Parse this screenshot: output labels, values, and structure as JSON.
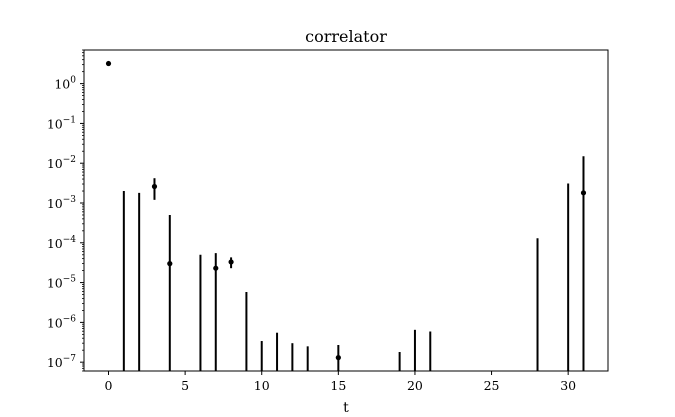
{
  "chart_data": {
    "type": "scatter",
    "title": "correlator",
    "xlabel": "t",
    "ylabel": "",
    "yscale": "log",
    "xlim": [
      -1.6,
      32.6
    ],
    "ylim": [
      6e-08,
      7
    ],
    "xticks": [
      0,
      5,
      10,
      15,
      20,
      25,
      30
    ],
    "xtick_labels": [
      "0",
      "5",
      "10",
      "15",
      "20",
      "25",
      "30"
    ],
    "yticks": [
      1e-07,
      1e-06,
      1e-05,
      0.0001,
      0.001,
      0.01,
      0.1,
      1
    ],
    "ytick_labels": [
      {
        "base": "10",
        "exp": "−7"
      },
      {
        "base": "10",
        "exp": "−6"
      },
      {
        "base": "10",
        "exp": "−5"
      },
      {
        "base": "10",
        "exp": "−4"
      },
      {
        "base": "10",
        "exp": "−3"
      },
      {
        "base": "10",
        "exp": "−2"
      },
      {
        "base": "10",
        "exp": "−1"
      },
      {
        "base": "10",
        "exp": "0"
      }
    ],
    "grid": false,
    "color": "#000000",
    "points": [
      {
        "x": 0,
        "y": 3.2
      },
      {
        "x": 3,
        "y": 0.0026,
        "low": 0.0012,
        "high": 0.0042
      },
      {
        "x": 4,
        "y": 3e-05
      },
      {
        "x": 7,
        "y": 2.3e-05
      },
      {
        "x": 8,
        "y": 3.3e-05,
        "low": 2.3e-05,
        "high": 4.3e-05
      },
      {
        "x": 15,
        "y": 1.3e-07
      },
      {
        "x": 31,
        "y": 0.0018
      }
    ],
    "errorbars": [
      {
        "x": 1,
        "low": 6e-08,
        "high": 0.002
      },
      {
        "x": 2,
        "low": 6e-08,
        "high": 0.0018
      },
      {
        "x": 3,
        "low": 0.0012,
        "high": 0.0042
      },
      {
        "x": 4,
        "low": 6e-08,
        "high": 0.0005
      },
      {
        "x": 6,
        "low": 6e-08,
        "high": 5e-05
      },
      {
        "x": 7,
        "low": 6e-08,
        "high": 5.5e-05
      },
      {
        "x": 8,
        "low": 2.3e-05,
        "high": 4.3e-05
      },
      {
        "x": 9,
        "low": 6e-08,
        "high": 5.8e-06
      },
      {
        "x": 10,
        "low": 6e-08,
        "high": 3.4e-07
      },
      {
        "x": 11,
        "low": 6e-08,
        "high": 5.5e-07
      },
      {
        "x": 12,
        "low": 6e-08,
        "high": 3e-07
      },
      {
        "x": 13,
        "low": 6e-08,
        "high": 2.5e-07
      },
      {
        "x": 15,
        "low": 6e-08,
        "high": 2.7e-07
      },
      {
        "x": 19,
        "low": 6e-08,
        "high": 1.8e-07
      },
      {
        "x": 20,
        "low": 6e-08,
        "high": 6.5e-07
      },
      {
        "x": 21,
        "low": 6e-08,
        "high": 5.9e-07
      },
      {
        "x": 28,
        "low": 6e-08,
        "high": 0.00013
      },
      {
        "x": 30,
        "low": 6e-08,
        "high": 0.0031
      },
      {
        "x": 31,
        "low": 6e-08,
        "high": 0.015
      }
    ]
  }
}
